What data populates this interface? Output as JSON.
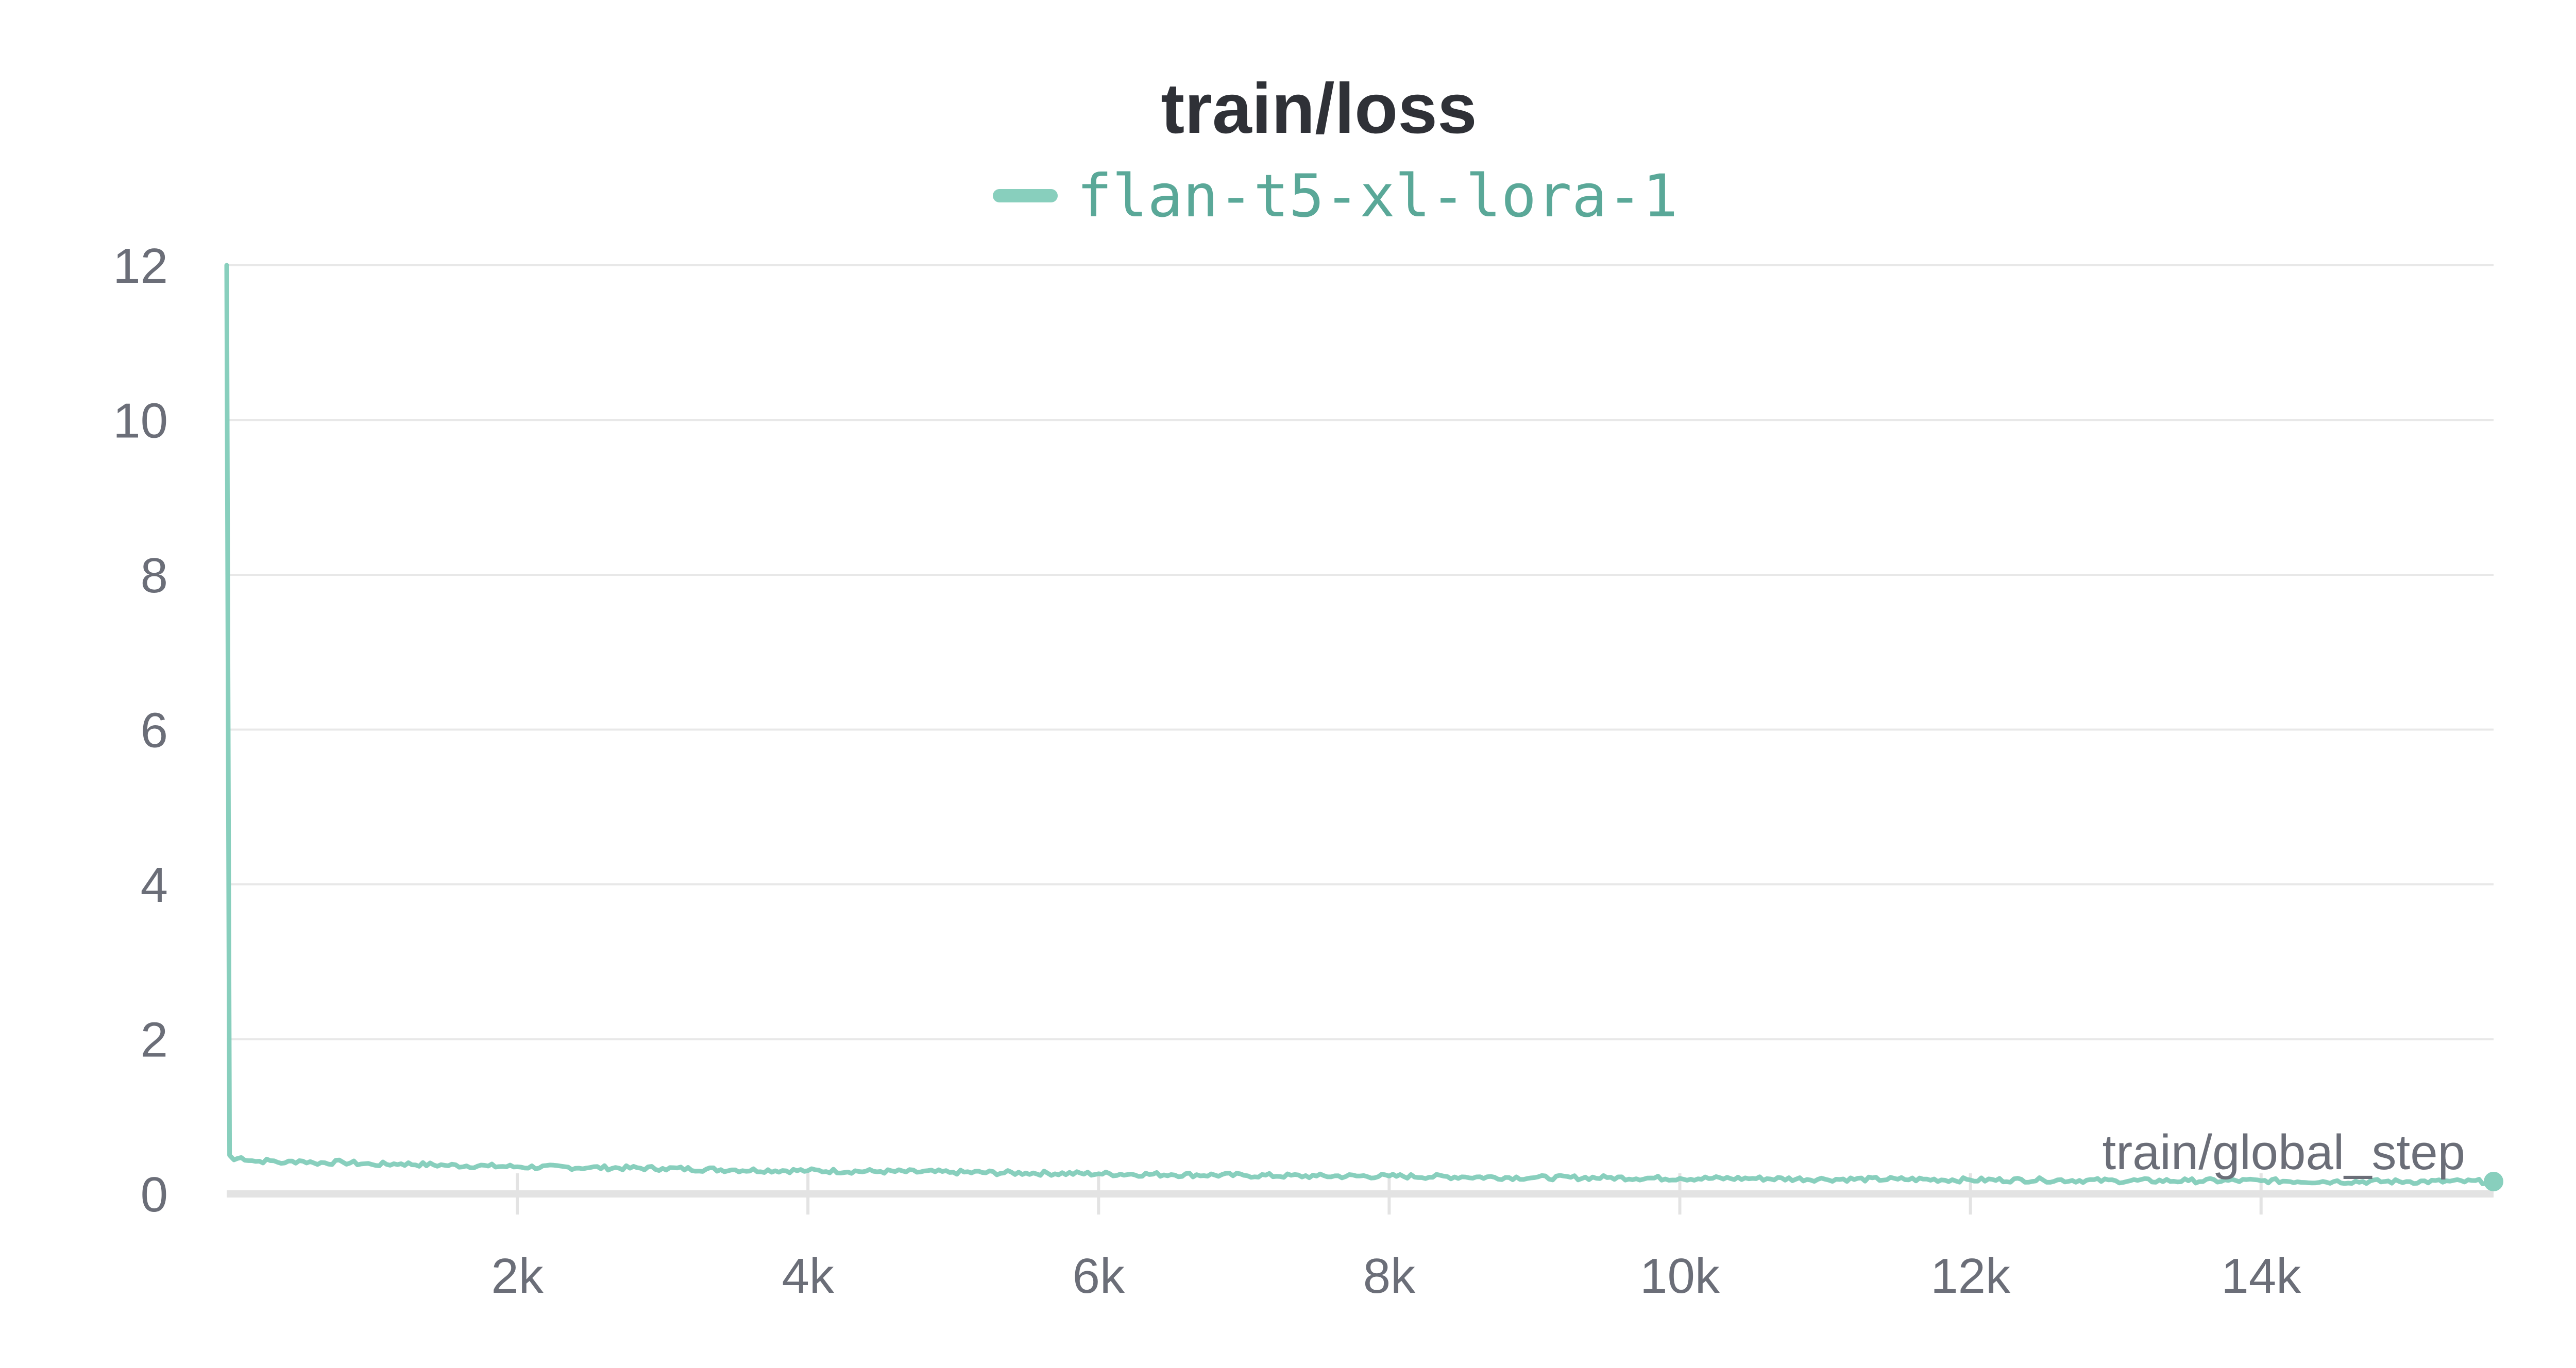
{
  "chart_data": {
    "type": "line",
    "title": "train/loss",
    "xlabel": "train/global_step",
    "ylabel": "",
    "xlim": [
      0,
      15600
    ],
    "ylim": [
      0,
      12
    ],
    "x_ticks": [
      2000,
      4000,
      6000,
      8000,
      10000,
      12000,
      14000
    ],
    "x_tick_labels": [
      "2k",
      "4k",
      "6k",
      "8k",
      "10k",
      "12k",
      "14k"
    ],
    "y_ticks": [
      0,
      2,
      4,
      6,
      8,
      10,
      12
    ],
    "y_tick_labels": [
      "0",
      "2",
      "4",
      "6",
      "8",
      "10",
      "12"
    ],
    "grid": true,
    "legend_position": "top-center",
    "series": [
      {
        "name": "flan-t5-xl-lora-1",
        "color": "#88cfbd",
        "x": [
          0,
          20,
          50,
          100,
          200,
          300,
          400,
          500,
          600,
          800,
          1000,
          1200,
          1500,
          1800,
          2000,
          2500,
          3000,
          3500,
          4000,
          4500,
          5000,
          5500,
          6000,
          6500,
          7000,
          7500,
          8000,
          8500,
          9000,
          9500,
          10000,
          10500,
          11000,
          11500,
          12000,
          12500,
          13000,
          13500,
          14000,
          14500,
          15000,
          15600
        ],
        "values": [
          12.0,
          0.5,
          0.44,
          0.47,
          0.42,
          0.43,
          0.4,
          0.43,
          0.4,
          0.41,
          0.38,
          0.39,
          0.37,
          0.36,
          0.35,
          0.34,
          0.33,
          0.31,
          0.3,
          0.29,
          0.28,
          0.27,
          0.26,
          0.25,
          0.24,
          0.23,
          0.23,
          0.22,
          0.21,
          0.21,
          0.2,
          0.2,
          0.19,
          0.19,
          0.18,
          0.18,
          0.17,
          0.17,
          0.17,
          0.16,
          0.16,
          0.16
        ]
      }
    ]
  }
}
